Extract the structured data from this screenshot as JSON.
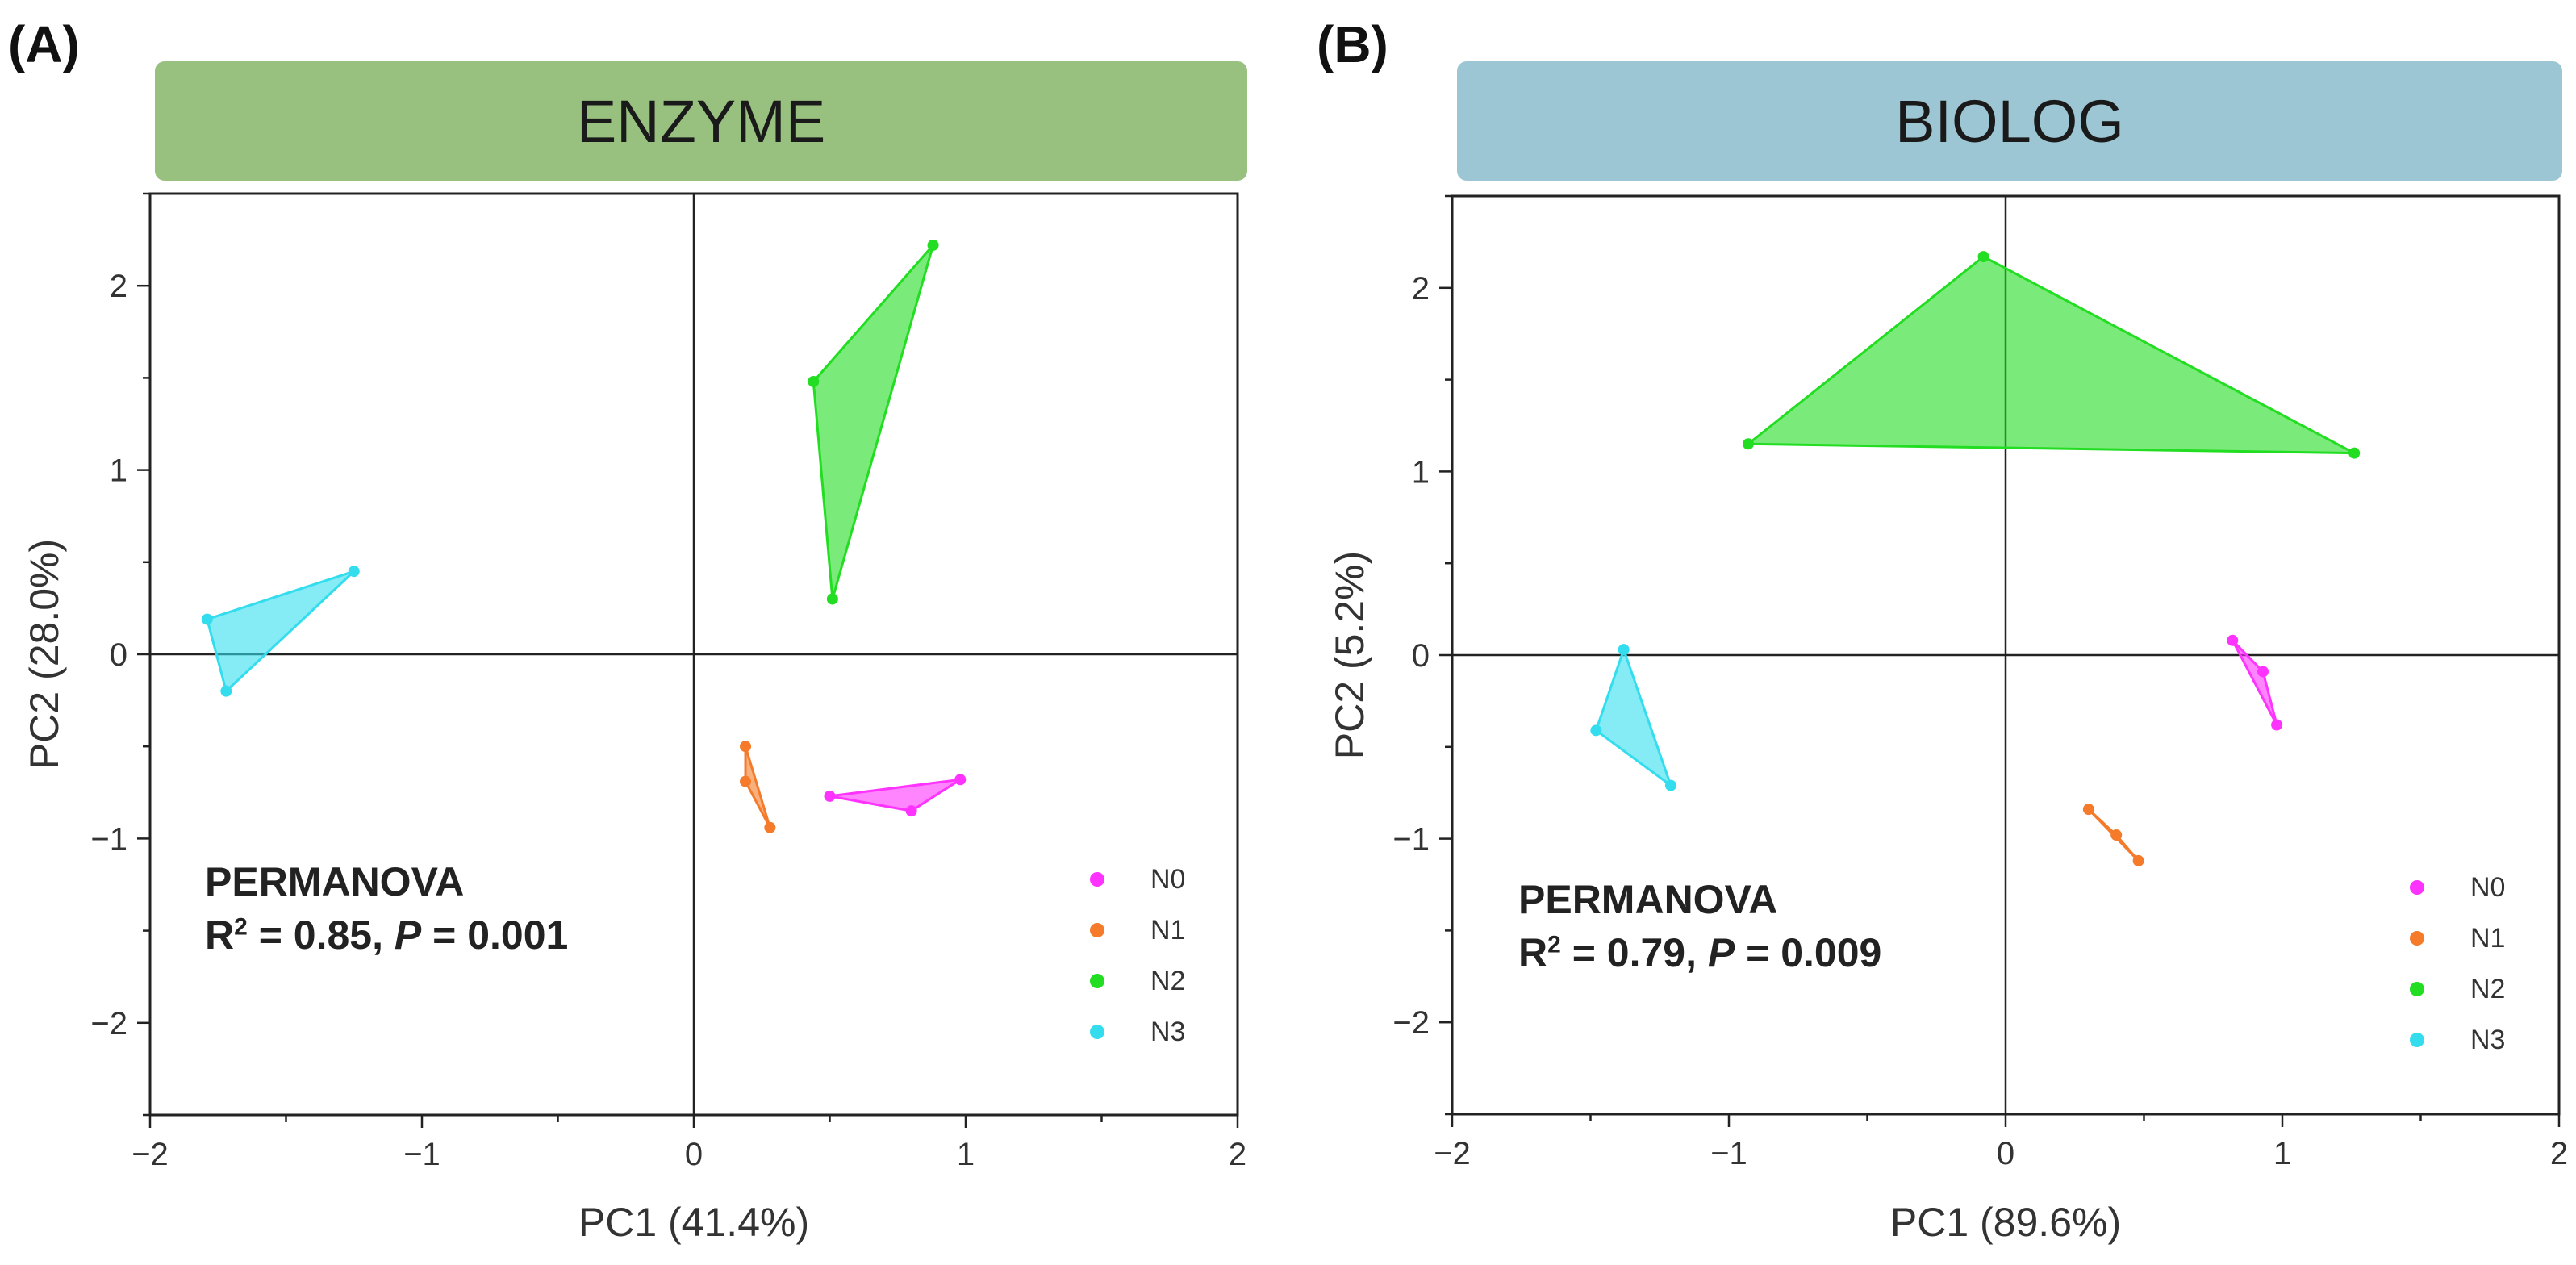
{
  "chart_data": [
    {
      "type": "scatter",
      "panel_label": "(A)",
      "title": "ENZYME",
      "title_color": "#98c17f",
      "xlabel": "PC1 (41.4%)",
      "ylabel": "PC2 (28.0%)",
      "xlim": [
        -2,
        2
      ],
      "ylim": [
        -2.5,
        2.5
      ],
      "xticks": [
        -2,
        -1,
        0,
        1,
        2
      ],
      "yticks": [
        -2,
        -1,
        0,
        1,
        2
      ],
      "xtick_labels": [
        "−2",
        "−1",
        "0",
        "1",
        "2"
      ],
      "ytick_labels": [
        "−2",
        "−1",
        "0",
        "1",
        "2"
      ],
      "permanova": {
        "heading": "PERMANOVA",
        "r2_prefix": "R",
        "r2_sup": "2",
        "r2_value": " = 0.85, ",
        "p_label": "P",
        "p_value": " = 0.001"
      },
      "series": [
        {
          "name": "N0",
          "color": "#ff33ff",
          "points": [
            [
              0.5,
              -0.77
            ],
            [
              0.8,
              -0.85
            ],
            [
              0.98,
              -0.68
            ]
          ]
        },
        {
          "name": "N1",
          "color": "#f57b2a",
          "points": [
            [
              0.19,
              -0.5
            ],
            [
              0.19,
              -0.69
            ],
            [
              0.28,
              -0.94
            ]
          ]
        },
        {
          "name": "N2",
          "color": "#22dd22",
          "points": [
            [
              0.44,
              1.48
            ],
            [
              0.88,
              2.22
            ],
            [
              0.51,
              0.3
            ]
          ]
        },
        {
          "name": "N3",
          "color": "#33ddee",
          "points": [
            [
              -1.79,
              0.19
            ],
            [
              -1.72,
              -0.2
            ],
            [
              -1.25,
              0.45
            ]
          ]
        }
      ]
    },
    {
      "type": "scatter",
      "panel_label": "(B)",
      "title": "BIOLOG",
      "title_color": "#9cc6d3",
      "xlabel": "PC1 (89.6%)",
      "ylabel": "PC2 (5.2%)",
      "xlim": [
        -2,
        2
      ],
      "ylim": [
        -2.5,
        2.5
      ],
      "xticks": [
        -2,
        -1,
        0,
        1,
        2
      ],
      "yticks": [
        -2,
        -1,
        0,
        1,
        2
      ],
      "xtick_labels": [
        "−2",
        "−1",
        "0",
        "1",
        "2"
      ],
      "ytick_labels": [
        "−2",
        "−1",
        "0",
        "1",
        "2"
      ],
      "permanova": {
        "heading": "PERMANOVA",
        "r2_prefix": "R",
        "r2_sup": "2",
        "r2_value": " = 0.79, ",
        "p_label": "P",
        "p_value": " = 0.009"
      },
      "series": [
        {
          "name": "N0",
          "color": "#ff33ff",
          "points": [
            [
              0.82,
              0.08
            ],
            [
              0.93,
              -0.09
            ],
            [
              0.98,
              -0.38
            ]
          ]
        },
        {
          "name": "N1",
          "color": "#f57b2a",
          "points": [
            [
              0.3,
              -0.84
            ],
            [
              0.4,
              -0.98
            ],
            [
              0.48,
              -1.12
            ]
          ]
        },
        {
          "name": "N2",
          "color": "#22dd22",
          "points": [
            [
              -0.93,
              1.15
            ],
            [
              -0.08,
              2.17
            ],
            [
              1.26,
              1.1
            ]
          ]
        },
        {
          "name": "N3",
          "color": "#33ddee",
          "points": [
            [
              -1.48,
              -0.41
            ],
            [
              -1.38,
              0.03
            ],
            [
              -1.21,
              -0.71
            ]
          ]
        }
      ]
    }
  ]
}
